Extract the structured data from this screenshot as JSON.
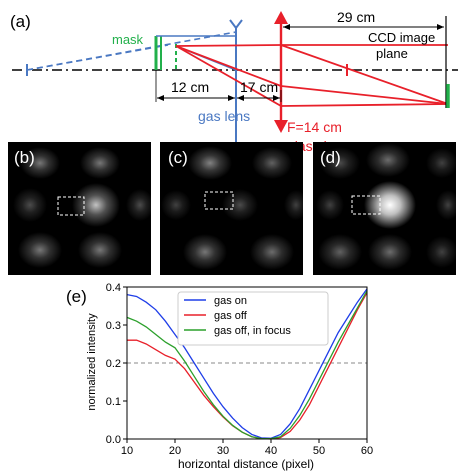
{
  "panel_a": {
    "label": "(a)",
    "mask_label": "mask",
    "dist_12": "12 cm",
    "dist_17": "17 cm",
    "dist_29": "29 cm",
    "gas_lens_label": "gas lens",
    "focal_label": "F=14 cm",
    "glass_lens_label": "glass lens",
    "ccd_label_line1": "CCD image",
    "ccd_label_line2": "plane",
    "colors": {
      "blue": "#4a78c2",
      "red": "#e8202a",
      "green": "#22b04b",
      "black": "#000000"
    }
  },
  "panels_bcd": {
    "labels": [
      "(b)",
      "(c)",
      "(d)"
    ]
  },
  "chart_data": {
    "type": "line",
    "panel_label": "(e)",
    "xlabel": "horizontal distance (pixel)",
    "ylabel": "normalized intensity",
    "xlim": [
      10,
      60
    ],
    "ylim": [
      0,
      0.4
    ],
    "xticks": [
      10,
      20,
      30,
      40,
      50,
      60
    ],
    "yticks": [
      0.0,
      0.1,
      0.2,
      0.3,
      0.4
    ],
    "ytick_labels": [
      "0.0",
      "0.1",
      "0.2",
      "0.3",
      "0.4"
    ],
    "grid": false,
    "legend_position": "top-center",
    "reference_line": {
      "y": 0.2,
      "style": "dashed"
    },
    "series": [
      {
        "name": "gas on",
        "color": "#1f3ee8",
        "x": [
          10,
          12,
          14,
          16,
          18,
          20,
          22,
          24,
          26,
          28,
          30,
          32,
          34,
          36,
          38,
          40,
          42,
          44,
          46,
          48,
          50,
          52,
          54,
          56,
          58,
          60
        ],
        "y": [
          0.38,
          0.375,
          0.36,
          0.34,
          0.31,
          0.275,
          0.24,
          0.2,
          0.16,
          0.12,
          0.085,
          0.055,
          0.03,
          0.012,
          0.003,
          0.002,
          0.012,
          0.04,
          0.08,
          0.13,
          0.18,
          0.23,
          0.28,
          0.32,
          0.36,
          0.395
        ]
      },
      {
        "name": "gas off",
        "color": "#e8202a",
        "x": [
          10,
          12,
          14,
          16,
          18,
          20,
          22,
          24,
          26,
          28,
          30,
          32,
          34,
          36,
          38,
          40,
          42,
          44,
          46,
          48,
          50,
          52,
          54,
          56,
          58,
          60
        ],
        "y": [
          0.26,
          0.26,
          0.25,
          0.235,
          0.22,
          0.21,
          0.185,
          0.15,
          0.115,
          0.085,
          0.058,
          0.035,
          0.018,
          0.006,
          0.001,
          0.0,
          0.004,
          0.02,
          0.05,
          0.09,
          0.14,
          0.19,
          0.24,
          0.29,
          0.34,
          0.385
        ]
      },
      {
        "name": "gas off, in focus",
        "color": "#2ca02c",
        "x": [
          10,
          12,
          14,
          16,
          18,
          20,
          22,
          24,
          26,
          28,
          30,
          32,
          34,
          36,
          38,
          40,
          42,
          44,
          46,
          48,
          50,
          52,
          54,
          56,
          58,
          60
        ],
        "y": [
          0.32,
          0.31,
          0.295,
          0.275,
          0.255,
          0.24,
          0.205,
          0.165,
          0.125,
          0.09,
          0.06,
          0.036,
          0.018,
          0.006,
          0.001,
          0.001,
          0.006,
          0.028,
          0.062,
          0.105,
          0.155,
          0.205,
          0.255,
          0.3,
          0.345,
          0.39
        ]
      }
    ]
  }
}
